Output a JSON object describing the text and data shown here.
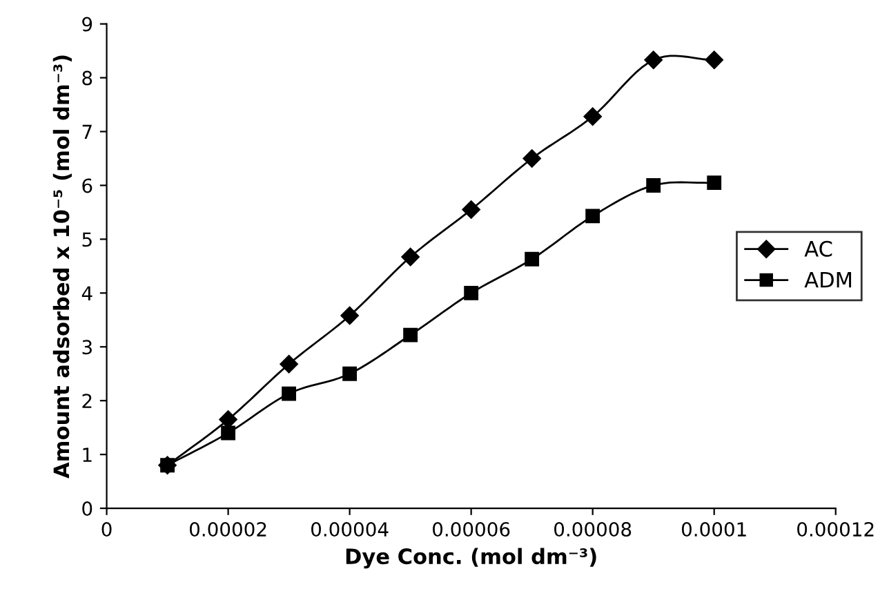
{
  "chart_data": {
    "type": "line",
    "xlabel": "Dye Conc. (mol dm⁻³)",
    "ylabel": "Amount adsorbed x 10⁻⁵ (mol dm⁻³)",
    "x": [
      1e-05,
      2e-05,
      3e-05,
      4e-05,
      5e-05,
      6e-05,
      7e-05,
      8e-05,
      9e-05,
      0.0001
    ],
    "series": [
      {
        "name": "AC",
        "color": "#000000",
        "marker": "diamond",
        "values": [
          0.8,
          1.65,
          2.68,
          3.58,
          4.67,
          5.55,
          6.5,
          7.28,
          8.33,
          8.33
        ]
      },
      {
        "name": "ADM",
        "color": "#000000",
        "marker": "square",
        "values": [
          0.8,
          1.4,
          2.13,
          2.5,
          3.22,
          4.0,
          4.63,
          5.43,
          6.0,
          6.05
        ]
      }
    ],
    "xlim": [
      0,
      0.00012
    ],
    "xticks": [
      0,
      {
        "value": 2e-05,
        "label": "0.00002"
      },
      {
        "value": 4e-05,
        "label": "0.00004"
      },
      {
        "value": 6e-05,
        "label": "0.00006"
      },
      {
        "value": 8e-05,
        "label": "0.00008"
      },
      {
        "value": 0.0001,
        "label": "0.0001"
      },
      {
        "value": 0.00012,
        "label": "0.00012"
      }
    ],
    "ylim": [
      0,
      9
    ],
    "yticks": [
      0,
      1,
      2,
      3,
      4,
      5,
      6,
      7,
      8,
      9
    ],
    "grid": false,
    "legend": "right",
    "line_style": "solid"
  }
}
